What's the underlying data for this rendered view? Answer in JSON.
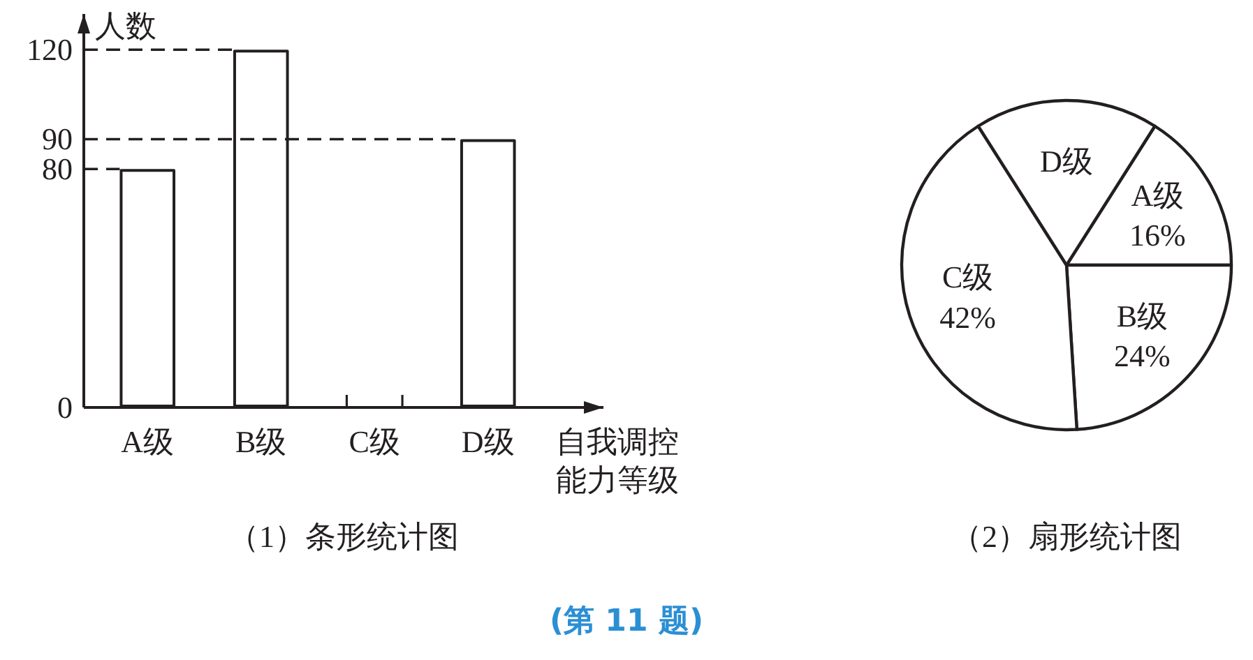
{
  "chart_data": [
    {
      "type": "bar",
      "title": "（1）条形统计图",
      "xlabel": "自我调控能力等级",
      "ylabel": "人数",
      "categories": [
        "A级",
        "B级",
        "C级",
        "D级"
      ],
      "values": [
        80,
        120,
        null,
        90
      ],
      "color": "#ffffff",
      "ylim": [
        0,
        132
      ],
      "yticks": [
        0,
        80,
        90,
        120
      ],
      "ref_lines": [
        {
          "axis": "y",
          "value": 120,
          "line_style": "dashed"
        },
        {
          "axis": "y",
          "value": 90,
          "line_style": "dashed"
        },
        {
          "axis": "y",
          "value": 80,
          "line_style": "dashed"
        }
      ],
      "annotations": [
        "(第 11 题)"
      ]
    },
    {
      "type": "pie",
      "title": "（2）扇形统计图",
      "categories": [
        "A级",
        "B级",
        "C级",
        "D级"
      ],
      "values": [
        16,
        24,
        42,
        18
      ],
      "colors": [
        "#ffffff",
        "#ffffff",
        "#ffffff",
        "#ffffff"
      ],
      "value_labels": [
        "16%",
        "24%",
        "42%",
        null
      ]
    }
  ]
}
